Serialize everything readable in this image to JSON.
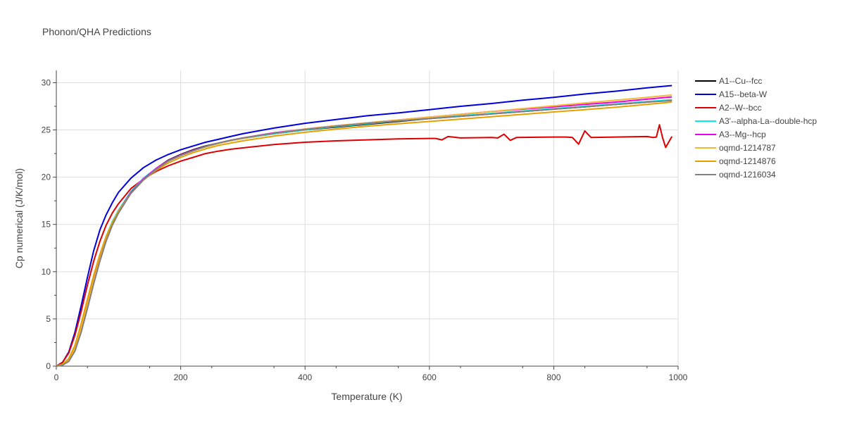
{
  "chart_data": {
    "type": "line",
    "title": "Phonon/QHA Predictions",
    "xlabel": "Temperature (K)",
    "ylabel": "Cp numerical (J/K/mol)",
    "xlim": [
      0,
      1000
    ],
    "ylim": [
      0,
      31.3
    ],
    "xticks": [
      0,
      200,
      400,
      600,
      800,
      1000
    ],
    "yticks": [
      0,
      5,
      10,
      15,
      20,
      25,
      30
    ],
    "grid": true,
    "legend_position": "right",
    "series": [
      {
        "name": "A1--Cu--fcc",
        "color": "#000000",
        "x": [
          0,
          10,
          20,
          30,
          40,
          50,
          60,
          70,
          80,
          90,
          100,
          120,
          140,
          160,
          180,
          200,
          220,
          240,
          260,
          280,
          300,
          350,
          400,
          450,
          500,
          550,
          600,
          650,
          700,
          750,
          800,
          850,
          900,
          950,
          990
        ],
        "y": [
          0,
          0.2,
          0.7,
          2.0,
          4.1,
          6.6,
          9.1,
          11.5,
          13.5,
          15.1,
          16.4,
          18.4,
          19.8,
          20.9,
          21.8,
          22.4,
          22.9,
          23.3,
          23.6,
          23.9,
          24.1,
          24.6,
          25.0,
          25.3,
          25.6,
          25.9,
          26.2,
          26.45,
          26.7,
          26.95,
          27.2,
          27.45,
          27.7,
          27.95,
          28.15
        ]
      },
      {
        "name": "A15--beta-W",
        "color": "#0000dd",
        "x": [
          0,
          10,
          20,
          30,
          40,
          50,
          60,
          70,
          80,
          90,
          100,
          120,
          140,
          160,
          180,
          200,
          220,
          240,
          260,
          280,
          300,
          350,
          400,
          450,
          500,
          550,
          600,
          650,
          700,
          750,
          800,
          850,
          900,
          950,
          990
        ],
        "y": [
          0,
          0.4,
          1.5,
          3.6,
          6.4,
          9.4,
          12.2,
          14.4,
          16.0,
          17.3,
          18.4,
          19.9,
          21.0,
          21.8,
          22.4,
          22.9,
          23.3,
          23.7,
          24.0,
          24.3,
          24.6,
          25.2,
          25.7,
          26.1,
          26.5,
          26.8,
          27.15,
          27.5,
          27.8,
          28.15,
          28.45,
          28.8,
          29.1,
          29.45,
          29.7
        ]
      },
      {
        "name": "A2--W--bcc",
        "color": "#dd0000",
        "x": [
          0,
          10,
          20,
          30,
          40,
          50,
          60,
          70,
          80,
          90,
          100,
          120,
          140,
          160,
          180,
          200,
          220,
          240,
          260,
          280,
          300,
          350,
          400,
          450,
          500,
          550,
          600,
          610,
          620,
          630,
          650,
          700,
          710,
          720,
          730,
          740,
          800,
          820,
          830,
          840,
          850,
          860,
          900,
          950,
          960,
          965,
          970,
          975,
          980,
          990
        ],
        "y": [
          0,
          0.4,
          1.4,
          3.3,
          5.8,
          8.6,
          11.1,
          13.2,
          14.9,
          16.2,
          17.2,
          18.8,
          19.8,
          20.6,
          21.2,
          21.7,
          22.1,
          22.5,
          22.75,
          22.95,
          23.1,
          23.45,
          23.7,
          23.85,
          23.95,
          24.05,
          24.1,
          24.1,
          23.95,
          24.3,
          24.15,
          24.2,
          24.15,
          24.55,
          23.9,
          24.2,
          24.25,
          24.25,
          24.2,
          23.5,
          24.9,
          24.2,
          24.25,
          24.3,
          24.2,
          24.25,
          25.55,
          24.2,
          23.15,
          24.3
        ]
      },
      {
        "name": "A3'--alpha-La--double-hcp",
        "color": "#00eeee",
        "x": [
          0,
          10,
          20,
          30,
          40,
          50,
          60,
          70,
          80,
          90,
          100,
          120,
          140,
          160,
          180,
          200,
          220,
          240,
          260,
          280,
          300,
          350,
          400,
          450,
          500,
          550,
          600,
          650,
          700,
          750,
          800,
          850,
          900,
          950,
          990
        ],
        "y": [
          0,
          0.2,
          0.8,
          2.2,
          4.4,
          7.0,
          9.5,
          11.8,
          13.7,
          15.3,
          16.5,
          18.5,
          19.9,
          20.9,
          21.7,
          22.3,
          22.8,
          23.2,
          23.55,
          23.85,
          24.1,
          24.6,
          25.0,
          25.35,
          25.65,
          25.95,
          26.2,
          26.5,
          26.75,
          27.0,
          27.25,
          27.5,
          27.75,
          28.0,
          28.2
        ]
      },
      {
        "name": "A3--Mg--hcp",
        "color": "#ee00ee",
        "x": [
          0,
          10,
          20,
          30,
          40,
          50,
          60,
          70,
          80,
          90,
          100,
          120,
          140,
          160,
          180,
          200,
          220,
          240,
          260,
          280,
          300,
          350,
          400,
          450,
          500,
          550,
          600,
          650,
          700,
          750,
          800,
          850,
          900,
          950,
          990
        ],
        "y": [
          0,
          0.2,
          0.7,
          2.0,
          4.2,
          6.7,
          9.2,
          11.5,
          13.5,
          15.1,
          16.4,
          18.4,
          19.8,
          20.9,
          21.75,
          22.35,
          22.85,
          23.25,
          23.6,
          23.9,
          24.15,
          24.7,
          25.1,
          25.45,
          25.75,
          26.05,
          26.35,
          26.65,
          26.95,
          27.2,
          27.45,
          27.7,
          27.95,
          28.25,
          28.5
        ]
      },
      {
        "name": "oqmd-1214787",
        "color": "#f5b935",
        "x": [
          0,
          10,
          20,
          30,
          40,
          50,
          60,
          70,
          80,
          90,
          100,
          120,
          140,
          160,
          180,
          200,
          220,
          240,
          260,
          280,
          300,
          350,
          400,
          450,
          500,
          550,
          600,
          650,
          700,
          750,
          800,
          850,
          900,
          950,
          990
        ],
        "y": [
          0,
          0.2,
          0.7,
          1.9,
          4.0,
          6.5,
          9.0,
          11.3,
          13.3,
          15.0,
          16.3,
          18.3,
          19.7,
          20.8,
          21.7,
          22.3,
          22.8,
          23.2,
          23.55,
          23.85,
          24.1,
          24.65,
          25.1,
          25.45,
          25.75,
          26.05,
          26.35,
          26.65,
          26.95,
          27.25,
          27.55,
          27.85,
          28.15,
          28.45,
          28.7
        ]
      },
      {
        "name": "oqmd-1214876",
        "color": "#e8a000",
        "x": [
          0,
          10,
          20,
          30,
          40,
          50,
          60,
          70,
          80,
          90,
          100,
          120,
          140,
          160,
          180,
          200,
          220,
          240,
          260,
          280,
          300,
          350,
          400,
          450,
          500,
          550,
          600,
          650,
          700,
          750,
          800,
          850,
          900,
          950,
          990
        ],
        "y": [
          0,
          0.2,
          0.8,
          2.2,
          4.5,
          7.1,
          9.6,
          11.8,
          13.7,
          15.2,
          16.4,
          18.3,
          19.7,
          20.7,
          21.5,
          22.1,
          22.6,
          23.0,
          23.35,
          23.6,
          23.85,
          24.35,
          24.75,
          25.1,
          25.4,
          25.65,
          25.9,
          26.15,
          26.4,
          26.65,
          26.9,
          27.15,
          27.4,
          27.7,
          27.95
        ]
      },
      {
        "name": "oqmd-1216034",
        "color": "#808080",
        "x": [
          0,
          10,
          20,
          30,
          40,
          50,
          60,
          70,
          80,
          90,
          100,
          120,
          140,
          160,
          180,
          200,
          220,
          240,
          260,
          280,
          300,
          350,
          400,
          450,
          500,
          550,
          600,
          650,
          700,
          750,
          800,
          850,
          900,
          950,
          990
        ],
        "y": [
          0,
          0.1,
          0.5,
          1.6,
          3.6,
          6.1,
          8.7,
          11.1,
          13.2,
          14.9,
          16.2,
          18.3,
          19.7,
          20.8,
          21.7,
          22.3,
          22.8,
          23.25,
          23.6,
          23.9,
          24.15,
          24.65,
          25.05,
          25.4,
          25.7,
          25.95,
          26.2,
          26.45,
          26.7,
          26.95,
          27.2,
          27.45,
          27.7,
          27.95,
          28.1
        ]
      }
    ]
  }
}
